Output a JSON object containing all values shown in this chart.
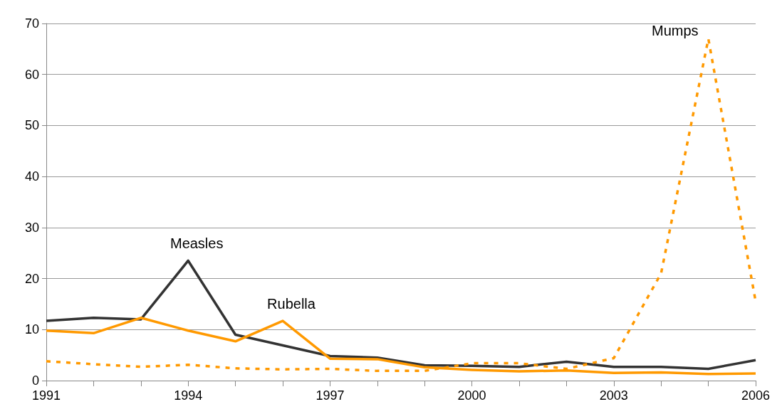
{
  "chart_data": {
    "type": "line",
    "x": [
      1991,
      1992,
      1993,
      1994,
      1995,
      1996,
      1997,
      1998,
      1999,
      2000,
      2001,
      2002,
      2003,
      2004,
      2005,
      2006
    ],
    "xlim": [
      1991,
      2006
    ],
    "xticks": [
      1991,
      {
        "value": 1992,
        "label": null
      },
      {
        "value": 1993,
        "label": null
      },
      1994,
      {
        "value": 1995,
        "label": null
      },
      {
        "value": 1996,
        "label": null
      },
      1997,
      {
        "value": 1998,
        "label": null
      },
      {
        "value": 1999,
        "label": null
      },
      2000,
      {
        "value": 2001,
        "label": null
      },
      {
        "value": 2002,
        "label": null
      },
      2003,
      {
        "value": 2004,
        "label": null
      },
      {
        "value": 2005,
        "label": null
      },
      2006
    ],
    "ylim": [
      0,
      70
    ],
    "yticks": [
      0,
      10,
      20,
      30,
      40,
      50,
      60,
      70
    ],
    "grid": "y",
    "legend": false,
    "marker": "none",
    "series": [
      {
        "name": "Measles",
        "color": "#333333",
        "line_style": "solid",
        "values": [
          11.7,
          12.3,
          12.0,
          23.5,
          9.0,
          6.9,
          4.8,
          4.5,
          3.0,
          2.9,
          2.7,
          3.7,
          2.7,
          2.7,
          2.3,
          4.0
        ]
      },
      {
        "name": "Rubella",
        "color": "#ff9900",
        "line_style": "solid",
        "values": [
          9.8,
          9.3,
          12.3,
          9.8,
          7.7,
          11.7,
          4.3,
          4.2,
          2.6,
          2.1,
          1.8,
          2.0,
          1.5,
          1.6,
          1.3,
          1.4
        ]
      },
      {
        "name": "Mumps",
        "color": "#ff9900",
        "line_style": "dashed",
        "values": [
          3.8,
          3.2,
          2.7,
          3.1,
          2.4,
          2.2,
          2.3,
          1.9,
          1.9,
          3.4,
          3.4,
          2.3,
          4.4,
          21,
          67,
          15.5
        ]
      }
    ]
  }
}
